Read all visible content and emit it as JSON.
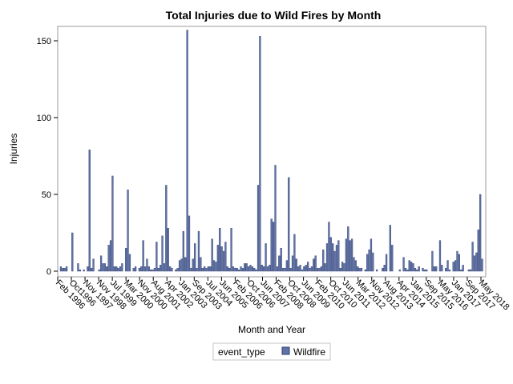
{
  "chart_data": {
    "type": "bar",
    "title": "Total Injuries due to Wild Fires by Month",
    "xlabel": "Month and Year",
    "ylabel": "Injuries",
    "ylim": [
      0,
      160
    ],
    "yticks": [
      0,
      50,
      100,
      150
    ],
    "xtick_labels": [
      "Feb 1996",
      "Oct1996",
      "Nov 1997",
      "Nov 1998",
      "Jul 1999",
      "Mar 2000",
      "Nov 2000",
      "Aug 2001",
      "Apr 2002",
      "Jan 2003",
      "Sep 2003",
      "Jul 2004",
      "Jun 2005",
      "Feb 2006",
      "Oct 2006",
      "Jun 2007",
      "Feb 2008",
      "Oct 2008",
      "Jun 2009",
      "Feb 2010",
      "Oct 2010",
      "Jun 2011",
      "Mar 2012",
      "Nov 2012",
      "Aug 2013",
      "Apr 2014",
      "Jan 2015",
      "Sep 2015",
      "May 2016",
      "Jan 2017",
      "Sep 2017",
      "May 2018"
    ],
    "grid": false,
    "legend": {
      "title": "event_type",
      "placement": "bottom"
    },
    "series": [
      {
        "name": "Wildfire",
        "color": "#6173a6",
        "edge_color": "#2e3f73",
        "values": [
          3,
          2,
          2,
          3,
          0,
          0,
          25,
          0,
          0,
          5,
          1,
          0,
          1,
          0,
          3,
          79,
          2,
          8,
          0,
          0,
          1,
          10,
          5,
          5,
          3,
          17,
          20,
          62,
          3,
          3,
          2,
          3,
          5,
          0,
          15,
          53,
          11,
          0,
          2,
          3,
          0,
          2,
          3,
          20,
          3,
          8,
          3,
          1,
          1,
          2,
          19,
          2,
          4,
          23,
          5,
          56,
          28,
          3,
          2,
          0,
          1,
          2,
          7,
          8,
          26,
          9,
          157,
          36,
          2,
          8,
          18,
          2,
          26,
          9,
          2,
          3,
          2,
          3,
          3,
          21,
          7,
          6,
          17,
          28,
          16,
          13,
          19,
          3,
          2,
          28,
          3,
          2,
          2,
          1,
          3,
          2,
          5,
          5,
          3,
          4,
          3,
          2,
          1,
          56,
          153,
          4,
          3,
          18,
          3,
          4,
          34,
          32,
          69,
          3,
          10,
          15,
          2,
          2,
          7,
          61,
          2,
          10,
          24,
          8,
          3,
          4,
          1,
          3,
          4,
          6,
          2,
          3,
          8,
          10,
          2,
          2,
          3,
          14,
          5,
          18,
          32,
          22,
          18,
          13,
          17,
          20,
          2,
          6,
          5,
          21,
          29,
          20,
          21,
          9,
          7,
          3,
          2,
          2,
          0,
          1,
          11,
          14,
          21,
          12,
          0,
          1,
          0,
          0,
          2,
          4,
          11,
          0,
          30,
          17,
          0,
          0,
          0,
          1,
          0,
          9,
          2,
          1,
          7,
          6,
          5,
          2,
          1,
          3,
          0,
          2,
          1,
          1,
          0,
          0,
          13,
          3,
          3,
          0,
          20,
          4,
          0,
          2,
          7,
          1,
          0,
          6,
          7,
          13,
          11,
          1,
          4,
          0,
          0,
          1,
          1,
          19,
          10,
          12,
          27,
          50,
          8
        ]
      }
    ]
  }
}
